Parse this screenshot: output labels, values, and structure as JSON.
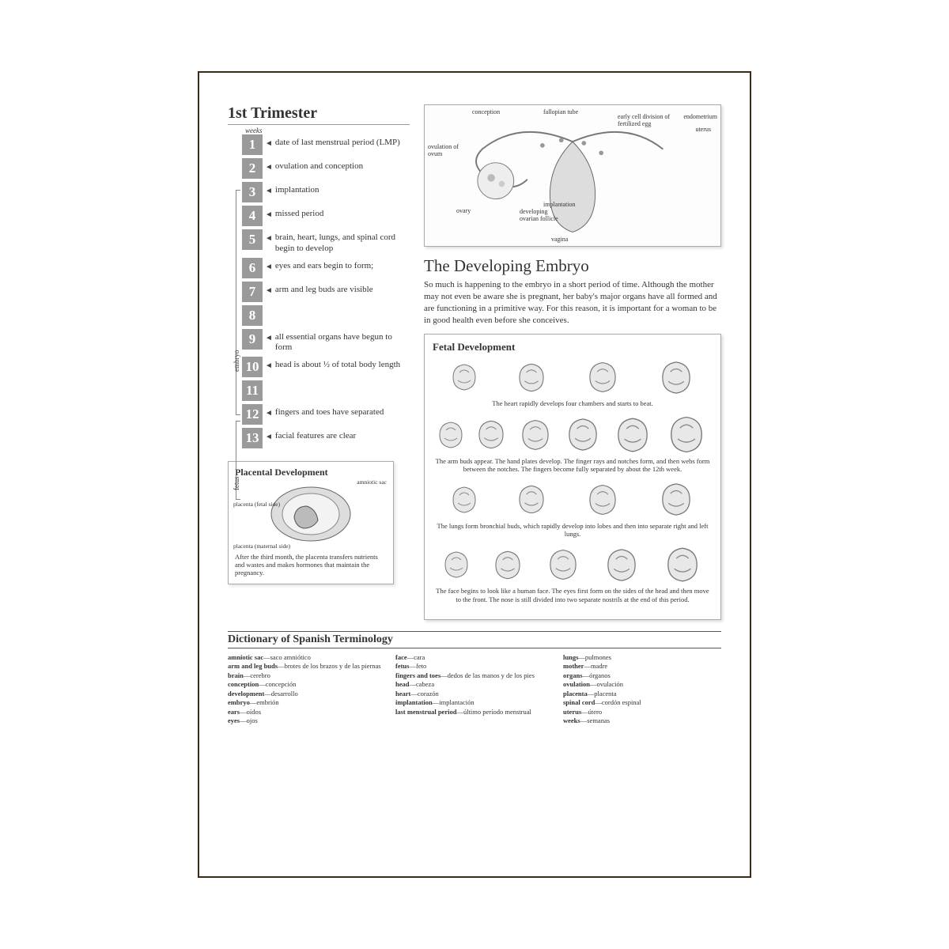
{
  "page": {
    "title": "1st Trimester",
    "weeks_label": "weeks",
    "stage_labels": {
      "embryo": "embryo",
      "fetus": "fetus"
    }
  },
  "timeline": [
    {
      "n": "1",
      "text": "date of last menstrual period (LMP)"
    },
    {
      "n": "2",
      "text": "ovulation and conception"
    },
    {
      "n": "3",
      "text": "implantation"
    },
    {
      "n": "4",
      "text": "missed period"
    },
    {
      "n": "5",
      "text": "brain, heart, lungs, and spinal cord begin to develop"
    },
    {
      "n": "6",
      "text": "eyes and ears begin to form;"
    },
    {
      "n": "7",
      "text": "arm and leg buds are visible"
    },
    {
      "n": "8",
      "text": ""
    },
    {
      "n": "9",
      "text": "all essential organs have begun to form"
    },
    {
      "n": "10",
      "text": "head is about ½ of total body length"
    },
    {
      "n": "11",
      "text": ""
    },
    {
      "n": "12",
      "text": "fingers and toes have separated"
    },
    {
      "n": "13",
      "text": "facial features are clear"
    }
  ],
  "anatomy": {
    "labels": {
      "conception": "conception",
      "fallopian": "fallopian tube",
      "cell_division": "early cell division of fertilized egg",
      "endometrium": "endometrium",
      "uterus": "uterus",
      "ovulation": "ovulation of ovum",
      "ovary": "ovary",
      "implantation": "implantation",
      "follicle": "developing ovarian follicle",
      "vagina": "vagina"
    }
  },
  "embryo_section": {
    "heading": "The Developing Embryo",
    "body": "So much is happening to the embryo in a short period of time. Although the mother may not even be aware she is pregnant, her baby's major organs have all formed and are functioning in a primitive way. For this reason, it is important for a woman to be in good health even before she conceives."
  },
  "fetal": {
    "title": "Fetal Development",
    "rows": [
      {
        "n_imgs": 4,
        "caption": "The heart rapidly develops four chambers and starts to beat."
      },
      {
        "n_imgs": 6,
        "caption": "The arm buds appear. The hand plates develop. The finger rays and notches form, and then webs form between the notches. The fingers become fully separated by about the 12th week."
      },
      {
        "n_imgs": 4,
        "caption": "The lungs form bronchial buds, which rapidly develop into lobes and then into separate right and left lungs."
      },
      {
        "n_imgs": 5,
        "caption": "The face begins to look like a human face. The eyes first form on the sides of the head and then move to the front. The nose is still divided into two separate nostrils at the end of this period."
      }
    ]
  },
  "placental": {
    "title": "Placental Development",
    "labels": {
      "amniotic": "amniotic sac",
      "fetal": "placenta (fetal side)",
      "maternal": "placenta (maternal side)"
    },
    "caption": "After the third month, the placenta transfers nutrients and wastes and makes hormones that maintain the pregnancy."
  },
  "dictionary": {
    "title": "Dictionary of Spanish Terminology",
    "cols": [
      [
        [
          "amniotic sac",
          "saco amniótico"
        ],
        [
          "arm and leg buds",
          "brotes de los brazos y de las piernas"
        ],
        [
          "brain",
          "cerebro"
        ],
        [
          "conception",
          "concepción"
        ],
        [
          "development",
          "desarrollo"
        ],
        [
          "embryo",
          "embrión"
        ],
        [
          "ears",
          "oídos"
        ],
        [
          "eyes",
          "ojos"
        ]
      ],
      [
        [
          "face",
          "cara"
        ],
        [
          "fetus",
          "feto"
        ],
        [
          "fingers and toes",
          "dedos de las manos y de los pies"
        ],
        [
          "head",
          "cabeza"
        ],
        [
          "heart",
          "corazón"
        ],
        [
          "implantation",
          "implantación"
        ],
        [
          "last menstrual period",
          "último período menstrual"
        ]
      ],
      [
        [
          "lungs",
          "pulmones"
        ],
        [
          "mother",
          "madre"
        ],
        [
          "organs",
          "órganos"
        ],
        [
          "ovulation",
          "ovulación"
        ],
        [
          "placenta",
          "placenta"
        ],
        [
          "spinal cord",
          "cordón espinal"
        ],
        [
          "uterus",
          "útero"
        ],
        [
          "weeks",
          "semanas"
        ]
      ]
    ]
  },
  "colors": {
    "week_box_bg": "#9a9a9a",
    "border": "#3a2a1a",
    "text": "#333333"
  }
}
